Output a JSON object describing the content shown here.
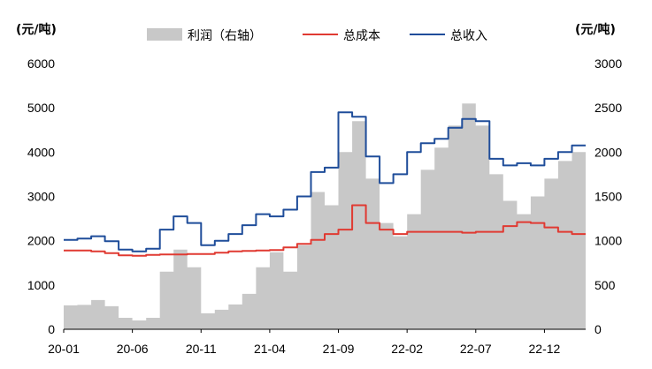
{
  "chart_data": {
    "type": "line",
    "title": "",
    "left_axis_unit": "(元/吨)",
    "right_axis_unit": "(元/吨)",
    "legend_position": "top",
    "grid": false,
    "x_tick_labels": [
      "20-01",
      "20-06",
      "20-11",
      "21-04",
      "21-09",
      "22-02",
      "22-07",
      "22-12"
    ],
    "left_axis": {
      "ylim": [
        0,
        6000
      ],
      "ticks": [
        0,
        1000,
        2000,
        3000,
        4000,
        5000,
        6000
      ]
    },
    "right_axis": {
      "ylim": [
        0,
        3000
      ],
      "ticks": [
        0,
        500,
        1000,
        1500,
        2000,
        2500,
        3000
      ]
    },
    "x_range": [
      "2020-01",
      "2023-02"
    ],
    "series": [
      {
        "name": "利润（右轴）",
        "type": "area",
        "axis": "right",
        "color": "#c8c8c8",
        "step": true,
        "points": [
          [
            "2020-01",
            270
          ],
          [
            "2020-02",
            275
          ],
          [
            "2020-03",
            330
          ],
          [
            "2020-04",
            260
          ],
          [
            "2020-05",
            130
          ],
          [
            "2020-06",
            100
          ],
          [
            "2020-07",
            130
          ],
          [
            "2020-08",
            650
          ],
          [
            "2020-09",
            900
          ],
          [
            "2020-10",
            700
          ],
          [
            "2020-11",
            180
          ],
          [
            "2020-12",
            220
          ],
          [
            "2021-01",
            280
          ],
          [
            "2021-02",
            400
          ],
          [
            "2021-03",
            700
          ],
          [
            "2021-04",
            870
          ],
          [
            "2021-05",
            650
          ],
          [
            "2021-06",
            950
          ],
          [
            "2021-07",
            1550
          ],
          [
            "2021-08",
            1400
          ],
          [
            "2021-09",
            2000
          ],
          [
            "2021-10",
            2350
          ],
          [
            "2021-11",
            1700
          ],
          [
            "2021-12",
            1200
          ],
          [
            "2022-01",
            1050
          ],
          [
            "2022-02",
            1300
          ],
          [
            "2022-03",
            1800
          ],
          [
            "2022-04",
            2050
          ],
          [
            "2022-05",
            2300
          ],
          [
            "2022-06",
            2550
          ],
          [
            "2022-07",
            2300
          ],
          [
            "2022-08",
            1750
          ],
          [
            "2022-09",
            1450
          ],
          [
            "2022-10",
            1300
          ],
          [
            "2022-11",
            1500
          ],
          [
            "2022-12",
            1700
          ],
          [
            "2023-01",
            1900
          ],
          [
            "2023-02",
            2000
          ]
        ]
      },
      {
        "name": "总成本",
        "type": "line",
        "axis": "left",
        "color": "#e03a32",
        "step": true,
        "points": [
          [
            "2020-01",
            1780
          ],
          [
            "2020-02",
            1780
          ],
          [
            "2020-03",
            1760
          ],
          [
            "2020-04",
            1720
          ],
          [
            "2020-05",
            1670
          ],
          [
            "2020-06",
            1660
          ],
          [
            "2020-07",
            1680
          ],
          [
            "2020-08",
            1690
          ],
          [
            "2020-09",
            1690
          ],
          [
            "2020-10",
            1700
          ],
          [
            "2020-11",
            1700
          ],
          [
            "2020-12",
            1730
          ],
          [
            "2021-01",
            1760
          ],
          [
            "2021-02",
            1770
          ],
          [
            "2021-03",
            1780
          ],
          [
            "2021-04",
            1790
          ],
          [
            "2021-05",
            1850
          ],
          [
            "2021-06",
            1930
          ],
          [
            "2021-07",
            2020
          ],
          [
            "2021-08",
            2150
          ],
          [
            "2021-09",
            2250
          ],
          [
            "2021-10",
            2800
          ],
          [
            "2021-11",
            2400
          ],
          [
            "2021-12",
            2250
          ],
          [
            "2022-01",
            2150
          ],
          [
            "2022-02",
            2200
          ],
          [
            "2022-03",
            2200
          ],
          [
            "2022-04",
            2200
          ],
          [
            "2022-05",
            2200
          ],
          [
            "2022-06",
            2180
          ],
          [
            "2022-07",
            2200
          ],
          [
            "2022-08",
            2200
          ],
          [
            "2022-09",
            2330
          ],
          [
            "2022-10",
            2420
          ],
          [
            "2022-11",
            2400
          ],
          [
            "2022-12",
            2300
          ],
          [
            "2023-01",
            2200
          ],
          [
            "2023-02",
            2150
          ]
        ]
      },
      {
        "name": "总收入",
        "type": "line",
        "axis": "left",
        "color": "#1f4d9a",
        "step": true,
        "points": [
          [
            "2020-01",
            2020
          ],
          [
            "2020-02",
            2050
          ],
          [
            "2020-03",
            2100
          ],
          [
            "2020-04",
            1990
          ],
          [
            "2020-05",
            1800
          ],
          [
            "2020-06",
            1760
          ],
          [
            "2020-07",
            1820
          ],
          [
            "2020-08",
            2250
          ],
          [
            "2020-09",
            2550
          ],
          [
            "2020-10",
            2400
          ],
          [
            "2020-11",
            1900
          ],
          [
            "2020-12",
            2000
          ],
          [
            "2021-01",
            2150
          ],
          [
            "2021-02",
            2350
          ],
          [
            "2021-03",
            2600
          ],
          [
            "2021-04",
            2550
          ],
          [
            "2021-05",
            2700
          ],
          [
            "2021-06",
            3000
          ],
          [
            "2021-07",
            3550
          ],
          [
            "2021-08",
            3650
          ],
          [
            "2021-09",
            4900
          ],
          [
            "2021-10",
            4800
          ],
          [
            "2021-11",
            3900
          ],
          [
            "2021-12",
            3300
          ],
          [
            "2022-01",
            3500
          ],
          [
            "2022-02",
            4000
          ],
          [
            "2022-03",
            4200
          ],
          [
            "2022-04",
            4300
          ],
          [
            "2022-05",
            4550
          ],
          [
            "2022-06",
            4750
          ],
          [
            "2022-07",
            4700
          ],
          [
            "2022-08",
            3850
          ],
          [
            "2022-09",
            3700
          ],
          [
            "2022-10",
            3750
          ],
          [
            "2022-11",
            3700
          ],
          [
            "2022-12",
            3850
          ],
          [
            "2023-01",
            4000
          ],
          [
            "2023-02",
            4150
          ]
        ]
      }
    ]
  }
}
